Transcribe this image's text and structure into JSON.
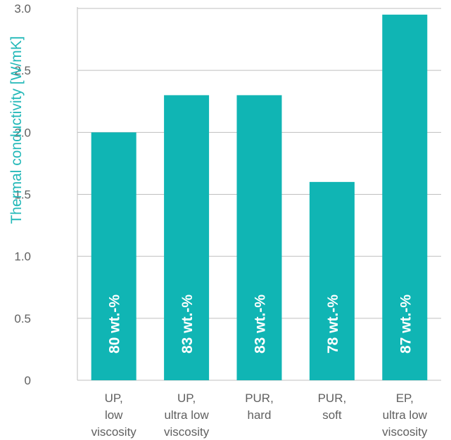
{
  "colors": {
    "bar": "#10b5b4",
    "axis_text": "#606060",
    "ylabel": "#22b8b8",
    "grid": "#bfbfbf",
    "bar_label": "#ffffff"
  },
  "chart_data": {
    "type": "bar",
    "categories": [
      [
        "UP,",
        "low",
        "viscosity"
      ],
      [
        "UP,",
        "ultra low",
        "viscosity"
      ],
      [
        "PUR,",
        "hard"
      ],
      [
        "PUR,",
        "soft"
      ],
      [
        "EP,",
        "ultra low",
        "viscosity"
      ]
    ],
    "values": [
      2.0,
      2.3,
      2.3,
      1.6,
      2.95
    ],
    "bar_labels": [
      "80 wt.-%",
      "83 wt.-%",
      "83 wt.-%",
      "78 wt.-%",
      "87 wt.-%"
    ],
    "ylabel": "Thermal conductivity [W/mK]",
    "xlabel": "",
    "ylim": [
      0,
      3.0
    ],
    "yticks": [
      0,
      0.5,
      1.0,
      1.5,
      2.0,
      2.5,
      3.0
    ],
    "ytick_labels": [
      "0",
      "0.5",
      "1.0",
      "1.5",
      "2.0",
      "2.5",
      "3.0"
    ],
    "grid": true
  }
}
